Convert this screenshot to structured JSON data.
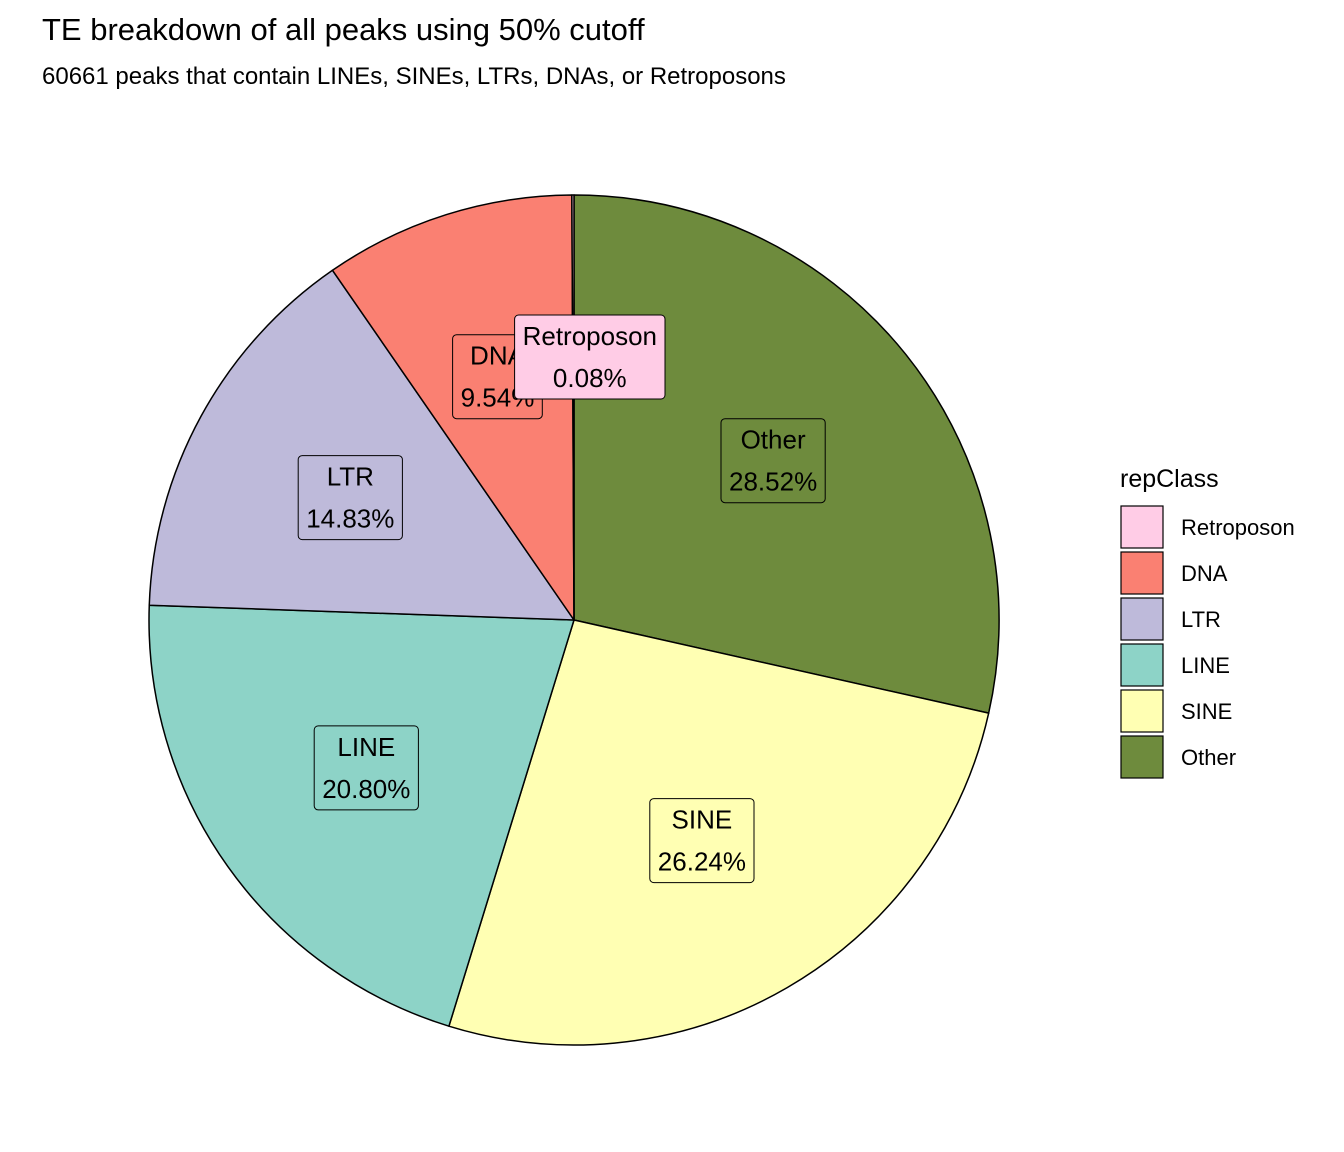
{
  "chart_data": {
    "type": "pie",
    "title": "TE breakdown of all peaks using 50% cutoff",
    "subtitle": "60661 peaks that contain LINEs, SINEs, LTRs, DNAs, or Retroposons",
    "legend_title": "repClass",
    "legend_position": "right",
    "start_angle": "12 o'clock",
    "direction": "clockwise",
    "slices": [
      {
        "label": "Other",
        "value": 28.52,
        "value_label": "28.52%",
        "color": "#6E8B3D"
      },
      {
        "label": "SINE",
        "value": 26.24,
        "value_label": "26.24%",
        "color": "#FFFFB3"
      },
      {
        "label": "LINE",
        "value": 20.8,
        "value_label": "20.80%",
        "color": "#8DD3C7"
      },
      {
        "label": "LTR",
        "value": 14.83,
        "value_label": "14.83%",
        "color": "#BEBADA"
      },
      {
        "label": "DNA",
        "value": 9.54,
        "value_label": "9.54%",
        "color": "#FA8072"
      },
      {
        "label": "Retroposon",
        "value": 0.08,
        "value_label": "0.08%",
        "color": "#FFCCE6"
      }
    ],
    "legend_order": [
      "Retroposon",
      "DNA",
      "LTR",
      "LINE",
      "SINE",
      "Other"
    ]
  }
}
